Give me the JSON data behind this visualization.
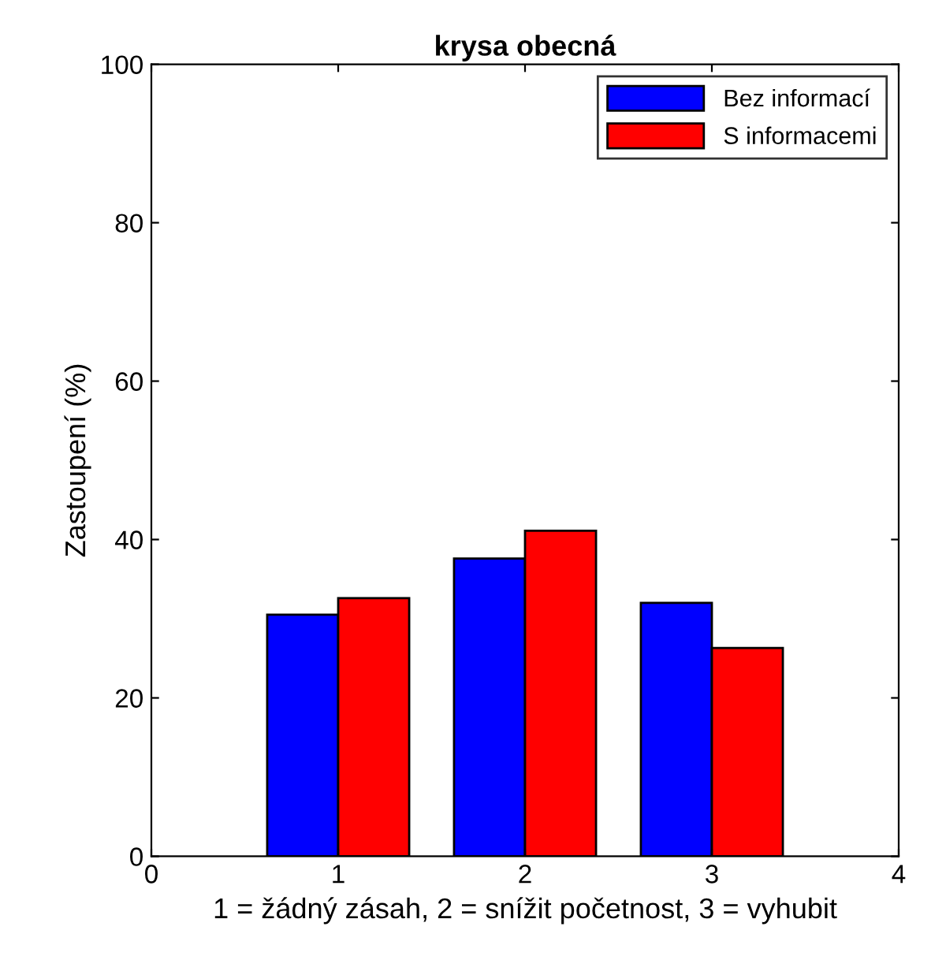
{
  "chart_data": {
    "type": "bar",
    "title": "krysa obecná",
    "xlabel": "1 = žádný zásah, 2 = snížit početnost, 3 = vyhubit",
    "ylabel": "Zastoupení (%)",
    "x": [
      1,
      2,
      3
    ],
    "series": [
      {
        "name": "Bez informací",
        "color": "#0000ff",
        "values": [
          30.5,
          37.6,
          32.0
        ]
      },
      {
        "name": "S informacemi",
        "color": "#ff0000",
        "values": [
          32.6,
          41.1,
          26.3
        ]
      }
    ],
    "xlim": [
      0,
      4
    ],
    "xticks": [
      0,
      1,
      2,
      3,
      4
    ],
    "ylim": [
      0,
      100
    ],
    "yticks": [
      0,
      20,
      40,
      60,
      80,
      100
    ],
    "grid": false,
    "legend": "top right"
  }
}
